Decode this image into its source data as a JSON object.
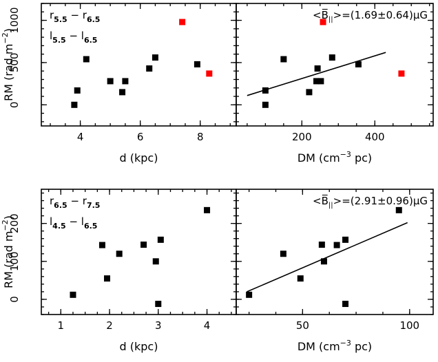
{
  "chart_data": [
    {
      "type": "scatter",
      "panel": "top-left",
      "xlabel": "d (kpc)",
      "ylabel": "RM (rad m",
      "ylabel_sup": "−2",
      "ylabel_tail": ")",
      "xlim": [
        2.7,
        9.2
      ],
      "ylim": [
        -250,
        1200
      ],
      "xticks": [
        4,
        6,
        8
      ],
      "yticks": [
        0,
        500,
        1000
      ],
      "annotation_lines": [
        {
          "base1": "r",
          "sub1": "5.5",
          "mid": " − ",
          "base2": "r",
          "sub2": "6.5"
        },
        {
          "base1": "l",
          "sub1": "5.5",
          "mid": " − ",
          "base2": "l",
          "sub2": "6.5"
        }
      ],
      "series": [
        {
          "color": "#000000",
          "points": [
            [
              3.8,
              0
            ],
            [
              3.9,
              170
            ],
            [
              4.2,
              540
            ],
            [
              5.0,
              280
            ],
            [
              5.4,
              150
            ],
            [
              5.5,
              280
            ],
            [
              6.3,
              430
            ],
            [
              6.5,
              560
            ],
            [
              7.9,
              480
            ]
          ]
        },
        {
          "color": "#ff0000",
          "points": [
            [
              7.4,
              980
            ],
            [
              8.3,
              370
            ]
          ]
        }
      ]
    },
    {
      "type": "scatter",
      "panel": "top-right",
      "xlabel_main": "DM (cm",
      "xlabel_sup": "−3",
      "xlabel_tail": " pc)",
      "xlim": [
        20,
        560
      ],
      "ylim": [
        -250,
        1200
      ],
      "xticks": [
        200,
        400
      ],
      "yticks": [
        0,
        500,
        1000
      ],
      "legend_text": "<B̅",
      "legend_sub": "||",
      "legend_tail": ">=(1.69±0.64)μG",
      "fit_line": [
        [
          50,
          110
        ],
        [
          430,
          620
        ]
      ],
      "series": [
        {
          "color": "#000000",
          "points": [
            [
              100,
              0
            ],
            [
              100,
              170
            ],
            [
              150,
              540
            ],
            [
              220,
              150
            ],
            [
              240,
              280
            ],
            [
              243,
              430
            ],
            [
              252,
              280
            ],
            [
              283,
              560
            ],
            [
              355,
              480
            ]
          ]
        },
        {
          "color": "#ff0000",
          "points": [
            [
              258,
              980
            ],
            [
              473,
              370
            ]
          ]
        }
      ]
    },
    {
      "type": "scatter",
      "panel": "bottom-left",
      "xlabel": "d (kpc)",
      "ylabel": "RM (rad m",
      "ylabel_sup": "−2",
      "ylabel_tail": ")",
      "xlim": [
        0.6,
        4.6
      ],
      "ylim": [
        -40,
        290
      ],
      "xticks": [
        1,
        2,
        3,
        4
      ],
      "yticks": [
        0,
        100,
        200
      ],
      "annotation_lines": [
        {
          "base1": "r",
          "sub1": "6.5",
          "mid": " − ",
          "base2": "r",
          "sub2": "7.5"
        },
        {
          "base1": "l",
          "sub1": "4.5",
          "mid": " − ",
          "base2": "l",
          "sub2": "6.5"
        }
      ],
      "series": [
        {
          "color": "#000000",
          "points": [
            [
              1.25,
              12
            ],
            [
              1.85,
              143
            ],
            [
              1.95,
              55
            ],
            [
              2.2,
              120
            ],
            [
              2.7,
              144
            ],
            [
              2.95,
              100
            ],
            [
              3.0,
              -12
            ],
            [
              3.05,
              157
            ],
            [
              4.0,
              235
            ]
          ]
        }
      ]
    },
    {
      "type": "scatter",
      "panel": "bottom-right",
      "xlabel_main": "DM (cm",
      "xlabel_sup": "−3",
      "xlabel_tail": " pc)",
      "xlim": [
        19,
        111
      ],
      "ylim": [
        -40,
        290
      ],
      "xticks": [
        50,
        100
      ],
      "yticks": [
        0,
        100,
        200
      ],
      "legend_text": "<B̅",
      "legend_sub": "||",
      "legend_tail": ">=(2.91±0.96)μG",
      "fit_line": [
        [
          24,
          20
        ],
        [
          99,
          202
        ]
      ],
      "series": [
        {
          "color": "#000000",
          "points": [
            [
              25,
              12
            ],
            [
              41,
              120
            ],
            [
              49,
              55
            ],
            [
              59,
              144
            ],
            [
              60,
              100
            ],
            [
              66,
              143
            ],
            [
              70,
              157
            ],
            [
              70,
              -12
            ],
            [
              95,
              235
            ]
          ]
        }
      ]
    }
  ]
}
